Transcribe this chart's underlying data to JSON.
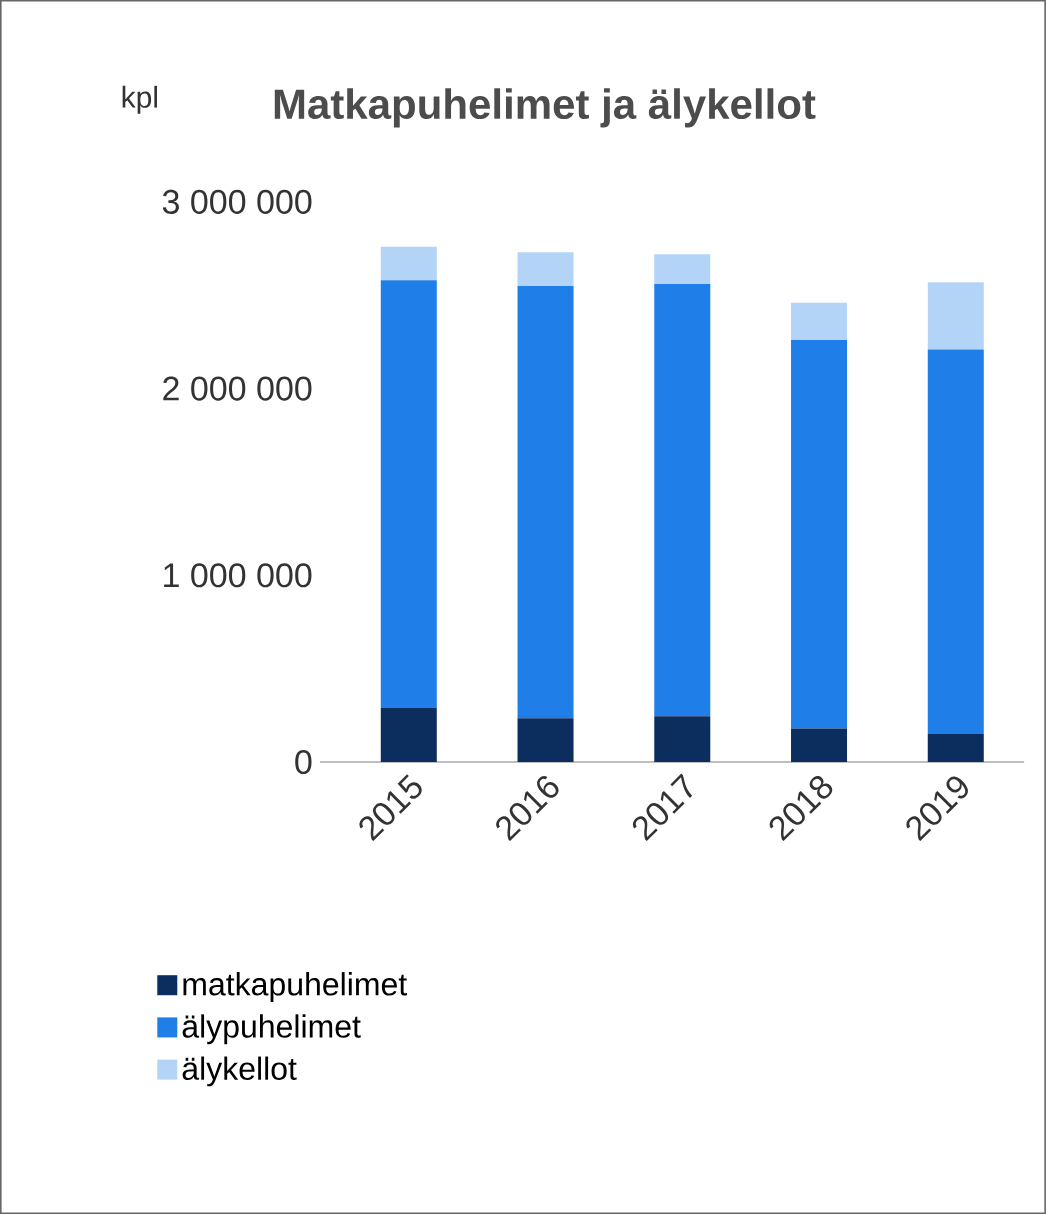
{
  "chart_data": {
    "type": "bar",
    "stacked": true,
    "title": "Matkapuhelimet ja älykellot",
    "ylabel": "kpl",
    "categories": [
      "2015",
      "2016",
      "2017",
      "2018",
      "2019"
    ],
    "series": [
      {
        "name": "matkapuhelimet",
        "color": "#0b2e5e",
        "values": [
          290000,
          235000,
          245000,
          180000,
          150000
        ]
      },
      {
        "name": "älypuhelimet",
        "color": "#1f7ee8",
        "values": [
          2290000,
          2315000,
          2315000,
          2080000,
          2060000
        ]
      },
      {
        "name": "älykellot",
        "color": "#b4d4f7",
        "values": [
          180000,
          180000,
          160000,
          200000,
          360000
        ]
      }
    ],
    "ylim": [
      0,
      3000000
    ],
    "yticks": [
      {
        "value": 0,
        "label": "0"
      },
      {
        "value": 1000000,
        "label": "1 000 000"
      },
      {
        "value": 2000000,
        "label": "2 000 000"
      },
      {
        "value": 3000000,
        "label": "3 000 000"
      }
    ],
    "grid": false,
    "legend": "bottom"
  }
}
